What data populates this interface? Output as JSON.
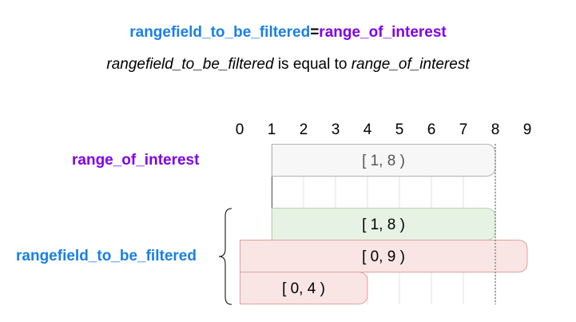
{
  "title": {
    "field": "rangefield_to_be_filtered",
    "operator": "=",
    "range": "range_of_interest"
  },
  "subtitle": {
    "field": "rangefield_to_be_filtered",
    "middle": " is equal to ",
    "range": "range_of_interest"
  },
  "labels": {
    "range_of_interest": "range_of_interest",
    "rangefield_to_be_filtered": "rangefield_to_be_filtered"
  },
  "axis": {
    "ticks": [
      "0",
      "1",
      "2",
      "3",
      "4",
      "5",
      "6",
      "7",
      "8",
      "9"
    ],
    "min": 0,
    "max": 9
  },
  "ranges": [
    {
      "label": "[ 1, 8 )",
      "start": 1,
      "end": 8,
      "kind": "interest"
    },
    {
      "label": "[ 1, 8 )",
      "start": 1,
      "end": 8,
      "kind": "match"
    },
    {
      "label": "[ 0, 9 )",
      "start": 0,
      "end": 9,
      "kind": "nomatch"
    },
    {
      "label": "[ 0, 4 )",
      "start": 0,
      "end": 4,
      "kind": "nomatch"
    }
  ],
  "colors": {
    "field": "#1a7fe6",
    "range": "#7f00e6",
    "interest_fill": "#f7f7f7",
    "interest_stroke": "#b3b3b3",
    "match_fill": "#e6f2e4",
    "match_stroke": "#b3d4ad",
    "nomatch_fill": "#fae5e5",
    "nomatch_stroke": "#e0a0a0",
    "grid": "#e0e0e0"
  }
}
